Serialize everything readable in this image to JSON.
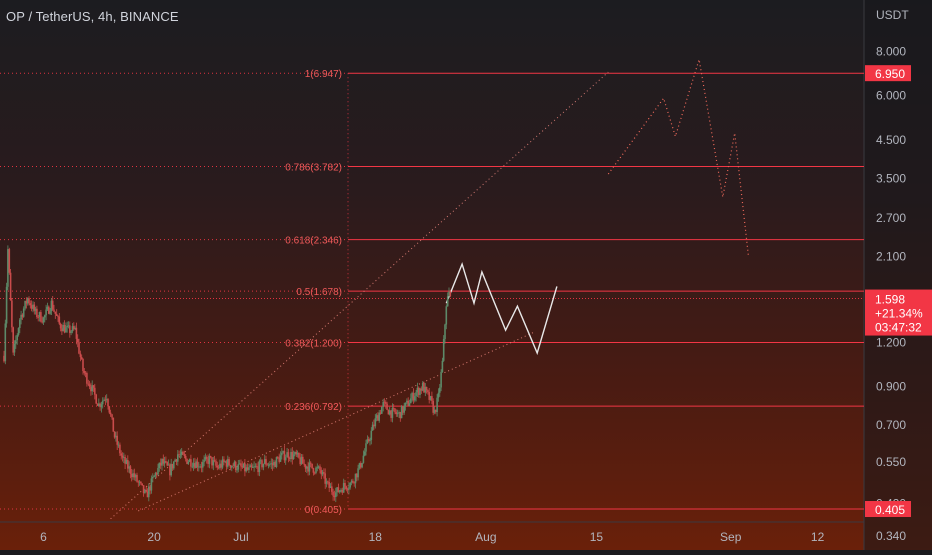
{
  "chart_data": {
    "type": "candlestick",
    "title": "OP / TetherUS, 4h, BINANCE",
    "y_unit": "USDT",
    "y_scale": "log",
    "ylim": [
      0.31,
      11.2
    ],
    "xlim": [
      "2022-06-01T00:00",
      "2022-09-18T00:00"
    ],
    "x_ticks": [
      {
        "label": "6",
        "date": "2022-06-06"
      },
      {
        "label": "20",
        "date": "2022-06-20"
      },
      {
        "label": "Jul",
        "date": "2022-07-01"
      },
      {
        "label": "18",
        "date": "2022-07-18"
      },
      {
        "label": "Aug",
        "date": "2022-08-01"
      },
      {
        "label": "15",
        "date": "2022-08-15"
      },
      {
        "label": "Sep",
        "date": "2022-09-01"
      },
      {
        "label": "12",
        "date": "2022-09-12"
      }
    ],
    "y_ticks": [
      {
        "label": "8.000",
        "value": 8.0
      },
      {
        "label": "6.000",
        "value": 6.0
      },
      {
        "label": "4.500",
        "value": 4.5
      },
      {
        "label": "3.500",
        "value": 3.5
      },
      {
        "label": "2.700",
        "value": 2.7
      },
      {
        "label": "2.100",
        "value": 2.1
      },
      {
        "label": "1.200",
        "value": 1.2
      },
      {
        "label": "0.900",
        "value": 0.9
      },
      {
        "label": "0.700",
        "value": 0.7
      },
      {
        "label": "0.550",
        "value": 0.55
      },
      {
        "label": "0.420",
        "value": 0.42
      },
      {
        "label": "0.340",
        "value": 0.34
      }
    ],
    "fib_levels": [
      {
        "label": "1(6.947)",
        "value": 6.947
      },
      {
        "label": "0.786(3.782)",
        "value": 3.782
      },
      {
        "label": "0.618(2.346)",
        "value": 2.346
      },
      {
        "label": "0.5(1.678)",
        "value": 1.678
      },
      {
        "label": "0.382(1.200)",
        "value": 1.2
      },
      {
        "label": "0.236(0.792)",
        "value": 0.792
      },
      {
        "label": "0(0.405)",
        "value": 0.405
      }
    ],
    "price_badges": [
      {
        "label": "6.950",
        "value": 6.95
      },
      {
        "label": "0.405",
        "value": 0.405
      }
    ],
    "last_price": {
      "price": "1.598",
      "change": "+21.34%",
      "countdown": "03:47:32",
      "value": 1.598
    },
    "trendlines": [
      {
        "style": "dotted",
        "points": [
          {
            "date": "2022-06-14T12:00",
            "price": 0.38
          },
          {
            "date": "2022-08-16T12:00",
            "price": 7.0
          }
        ]
      },
      {
        "style": "dotted",
        "points": [
          {
            "date": "2022-06-18T00:00",
            "price": 0.4
          },
          {
            "date": "2022-08-07T00:00",
            "price": 1.28
          }
        ]
      }
    ],
    "projections": [
      {
        "style": "solid",
        "points": [
          {
            "date": "2022-07-27T00:00",
            "price": 1.55
          },
          {
            "date": "2022-07-29T00:00",
            "price": 2.0
          },
          {
            "date": "2022-07-30T12:00",
            "price": 1.55
          },
          {
            "date": "2022-07-31T12:00",
            "price": 1.9
          },
          {
            "date": "2022-08-03T12:00",
            "price": 1.3
          },
          {
            "date": "2022-08-05T00:00",
            "price": 1.52
          },
          {
            "date": "2022-08-07T12:00",
            "price": 1.12
          },
          {
            "date": "2022-08-10T00:00",
            "price": 1.73
          }
        ]
      },
      {
        "style": "dotted",
        "points": [
          {
            "date": "2022-08-16T12:00",
            "price": 3.6
          },
          {
            "date": "2022-08-23T12:00",
            "price": 5.9
          },
          {
            "date": "2022-08-25T00:00",
            "price": 4.6
          },
          {
            "date": "2022-08-28T00:00",
            "price": 7.6
          },
          {
            "date": "2022-08-31T00:00",
            "price": 3.1
          },
          {
            "date": "2022-09-01T12:00",
            "price": 4.7
          },
          {
            "date": "2022-09-03T06:00",
            "price": 2.1
          }
        ]
      }
    ],
    "close_path": [
      [
        "2022-06-01T00:00",
        1.1
      ],
      [
        "2022-06-01T12:00",
        2.2
      ],
      [
        "2022-06-02T04:00",
        1.1
      ],
      [
        "2022-06-03T00:00",
        1.4
      ],
      [
        "2022-06-04T00:00",
        1.6
      ],
      [
        "2022-06-05T00:00",
        1.45
      ],
      [
        "2022-06-06T00:00",
        1.4
      ],
      [
        "2022-06-07T00:00",
        1.55
      ],
      [
        "2022-06-08T00:00",
        1.35
      ],
      [
        "2022-06-09T00:00",
        1.3
      ],
      [
        "2022-06-10T00:00",
        1.3
      ],
      [
        "2022-06-11T00:00",
        1.0
      ],
      [
        "2022-06-12T00:00",
        0.9
      ],
      [
        "2022-06-13T00:00",
        0.8
      ],
      [
        "2022-06-14T00:00",
        0.85
      ],
      [
        "2022-06-15T00:00",
        0.65
      ],
      [
        "2022-06-16T00:00",
        0.56
      ],
      [
        "2022-06-17T00:00",
        0.52
      ],
      [
        "2022-06-18T00:00",
        0.48
      ],
      [
        "2022-06-19T00:00",
        0.44
      ],
      [
        "2022-06-20T00:00",
        0.5
      ],
      [
        "2022-06-21T00:00",
        0.55
      ],
      [
        "2022-06-22T00:00",
        0.52
      ],
      [
        "2022-06-23T00:00",
        0.58
      ],
      [
        "2022-06-24T00:00",
        0.56
      ],
      [
        "2022-06-25T00:00",
        0.55
      ],
      [
        "2022-06-26T00:00",
        0.54
      ],
      [
        "2022-06-27T00:00",
        0.56
      ],
      [
        "2022-06-28T00:00",
        0.53
      ],
      [
        "2022-06-29T00:00",
        0.55
      ],
      [
        "2022-06-30T00:00",
        0.54
      ],
      [
        "2022-07-01T00:00",
        0.53
      ],
      [
        "2022-07-02T00:00",
        0.52
      ],
      [
        "2022-07-03T00:00",
        0.53
      ],
      [
        "2022-07-04T00:00",
        0.55
      ],
      [
        "2022-07-05T00:00",
        0.54
      ],
      [
        "2022-07-06T00:00",
        0.57
      ],
      [
        "2022-07-07T00:00",
        0.58
      ],
      [
        "2022-07-08T00:00",
        0.57
      ],
      [
        "2022-07-09T00:00",
        0.54
      ],
      [
        "2022-07-10T00:00",
        0.53
      ],
      [
        "2022-07-11T00:00",
        0.52
      ],
      [
        "2022-07-12T00:00",
        0.47
      ],
      [
        "2022-07-13T00:00",
        0.45
      ],
      [
        "2022-07-14T00:00",
        0.47
      ],
      [
        "2022-07-15T00:00",
        0.48
      ],
      [
        "2022-07-16T00:00",
        0.53
      ],
      [
        "2022-07-17T00:00",
        0.62
      ],
      [
        "2022-07-18T00:00",
        0.72
      ],
      [
        "2022-07-19T00:00",
        0.8
      ],
      [
        "2022-07-20T00:00",
        0.76
      ],
      [
        "2022-07-21T00:00",
        0.75
      ],
      [
        "2022-07-22T00:00",
        0.8
      ],
      [
        "2022-07-23T00:00",
        0.86
      ],
      [
        "2022-07-24T00:00",
        0.9
      ],
      [
        "2022-07-25T00:00",
        0.82
      ],
      [
        "2022-07-25T12:00",
        0.76
      ],
      [
        "2022-07-26T00:00",
        0.84
      ],
      [
        "2022-07-26T12:00",
        1.05
      ],
      [
        "2022-07-27T00:00",
        1.55
      ],
      [
        "2022-07-27T08:00",
        1.65
      ],
      [
        "2022-07-27T12:00",
        1.598
      ]
    ]
  }
}
